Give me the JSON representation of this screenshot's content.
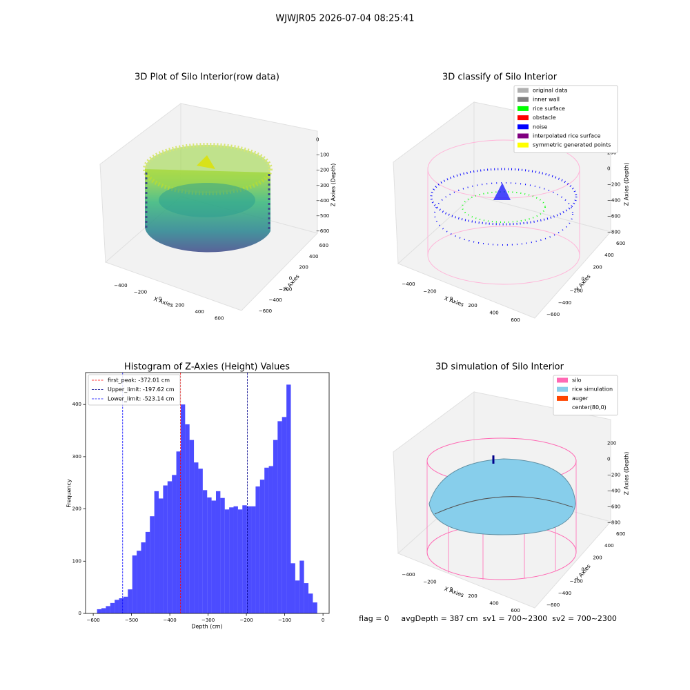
{
  "title": "WJWJR05 2026-07-04 08:25:41",
  "chart_data": [
    {
      "type": "scatter3d",
      "title": "3D Plot of Silo Interior(row data)",
      "xlabel": "X Axies",
      "ylabel": "Y Axies",
      "zlabel": "Z Axies (Depth)",
      "xlim": [
        -550,
        700
      ],
      "ylim": [
        -700,
        700
      ],
      "zlim": [
        -650,
        30
      ],
      "xticks": [
        {
          "value": -400,
          "label": "−400"
        },
        {
          "value": -200,
          "label": "−200"
        },
        0,
        200,
        400,
        600
      ],
      "yticks": [
        {
          "value": -600,
          "label": "−600"
        },
        {
          "value": -400,
          "label": "−400"
        },
        {
          "value": -200,
          "label": "−200"
        },
        0,
        200,
        400,
        600
      ],
      "zticks": [
        {
          "value": -600,
          "label": "−600"
        },
        {
          "value": -500,
          "label": "−500"
        },
        {
          "value": -400,
          "label": "−400"
        },
        {
          "value": -300,
          "label": "−300"
        },
        {
          "value": -200,
          "label": "−200"
        },
        {
          "value": -100,
          "label": "−100"
        },
        0
      ]
    },
    {
      "type": "scatter3d",
      "title": "3D classify of Silo Interior",
      "xlabel": "X Axies",
      "ylabel": "Y Axies",
      "zlabel": "Z Axies (Depth)",
      "xlim": [
        -550,
        700
      ],
      "ylim": [
        -700,
        700
      ],
      "zlim": [
        -850,
        250
      ],
      "xticks": [
        {
          "value": -400,
          "label": "−400"
        },
        {
          "value": -200,
          "label": "−200"
        },
        0,
        200,
        400,
        600
      ],
      "yticks": [
        {
          "value": -600,
          "label": "−600"
        },
        {
          "value": -400,
          "label": "−400"
        },
        {
          "value": -200,
          "label": "−200"
        },
        0,
        200,
        400,
        600
      ],
      "zticks": [
        {
          "value": -800,
          "label": "−800"
        },
        {
          "value": -600,
          "label": "−600"
        },
        {
          "value": -400,
          "label": "−400"
        },
        {
          "value": -200,
          "label": "−200"
        },
        0,
        200
      ],
      "legend": [
        {
          "name": "original data",
          "color": "#b0b0b0"
        },
        {
          "name": "inner wall",
          "color": "#808080"
        },
        {
          "name": "rice surface",
          "color": "#00ff00"
        },
        {
          "name": "obstacle",
          "color": "#ff0000"
        },
        {
          "name": "noise",
          "color": "#0000ff"
        },
        {
          "name": "interpolated rice surface",
          "color": "#800080"
        },
        {
          "name": "symmetric generated points",
          "color": "#ffff00"
        }
      ]
    },
    {
      "type": "histogram",
      "title": "Histogram of Z-Axies (Height) Values",
      "xlabel": "Depth (cm)",
      "ylabel": "Frequency",
      "color": "#0000ff",
      "bins": [
        -590,
        -578.5,
        -567,
        -555.5,
        -544,
        -532.5,
        -521,
        -509.5,
        -498,
        -486.5,
        -475,
        -463.5,
        -452,
        -440.5,
        -429,
        -417.5,
        -406,
        -394.5,
        -383,
        -371.5,
        -360,
        -348.5,
        -337,
        -325.5,
        -314,
        -302.5,
        -291,
        -279.5,
        -268,
        -256.5,
        -245,
        -233.5,
        -222,
        -210.5,
        -199,
        -187.5,
        -176,
        -164.5,
        -153,
        -141.5,
        -130,
        -118.5,
        -107,
        -95.5,
        -84,
        -72.5,
        -61,
        -49.5,
        -38,
        -26.5,
        -15
      ],
      "values": [
        8,
        10,
        14,
        20,
        26,
        29,
        32,
        46,
        111,
        120,
        136,
        156,
        186,
        234,
        220,
        245,
        253,
        265,
        310,
        400,
        362,
        332,
        289,
        277,
        236,
        222,
        216,
        234,
        221,
        199,
        203,
        205,
        199,
        207,
        205,
        205,
        243,
        256,
        279,
        282,
        332,
        368,
        376,
        438,
        96,
        63,
        101,
        58,
        38,
        21
      ],
      "xlim": [
        -620,
        16
      ],
      "ylim": [
        0,
        461
      ],
      "xticks": [
        {
          "value": -600,
          "label": "−600"
        },
        {
          "value": -500,
          "label": "−500"
        },
        {
          "value": -400,
          "label": "−400"
        },
        {
          "value": -300,
          "label": "−300"
        },
        {
          "value": -200,
          "label": "−200"
        },
        {
          "value": -100,
          "label": "−100"
        },
        0
      ],
      "yticks": [
        0,
        100,
        200,
        300,
        400
      ],
      "vlines": [
        {
          "label": "first_peak: -372.01 cm",
          "value": -372.01,
          "color": "#ff0000"
        },
        {
          "label": "Upper_limit: -197.62 cm",
          "value": -197.62,
          "color": "#00008b"
        },
        {
          "label": "Lower_limit: -523.14 cm",
          "value": -523.14,
          "color": "#0000ff"
        }
      ]
    },
    {
      "type": "surface3d",
      "title": "3D simulation of Silo Interior",
      "xlabel": "X Axies",
      "ylabel": "Y Axies",
      "zlabel": "Z Axies (Depth)",
      "xlim": [
        -550,
        700
      ],
      "ylim": [
        -700,
        700
      ],
      "zlim": [
        -850,
        250
      ],
      "xticks": [
        {
          "value": -400,
          "label": "−400"
        },
        {
          "value": -200,
          "label": "−200"
        },
        0,
        200,
        400,
        600
      ],
      "yticks": [
        {
          "value": -600,
          "label": "−600"
        },
        {
          "value": -400,
          "label": "−400"
        },
        {
          "value": -200,
          "label": "−200"
        },
        0,
        200,
        400,
        600
      ],
      "zticks": [
        {
          "value": -800,
          "label": "−800"
        },
        {
          "value": -600,
          "label": "−600"
        },
        {
          "value": -400,
          "label": "−400"
        },
        {
          "value": -200,
          "label": "−200"
        },
        0,
        200
      ],
      "legend": [
        {
          "name": "silo",
          "color": "#ff69b4"
        },
        {
          "name": "rice simulation",
          "color": "#87ceeb"
        },
        {
          "name": "auger",
          "color": "#ff4500"
        },
        {
          "name": "center(80,0)",
          "color": "#ffffff"
        }
      ],
      "annotation": "flag = 0     avgDepth = 387 cm  sv1 = 700~2300  sv2 = 700~2300"
    }
  ]
}
